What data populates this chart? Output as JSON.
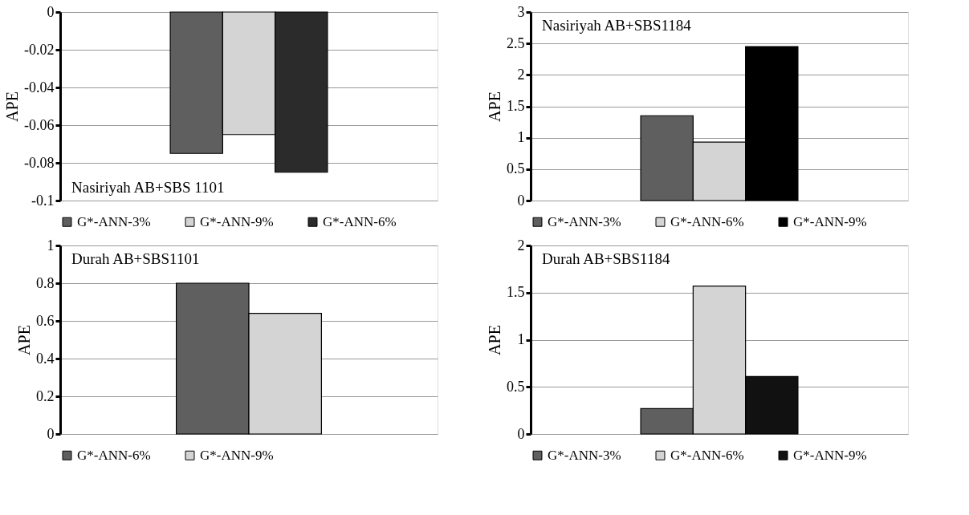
{
  "chart_data": [
    {
      "type": "bar",
      "ylabel": "APE",
      "annotations": [
        "Nasiriyah AB+SBS 1101"
      ],
      "categories": [
        null
      ],
      "ylim": [
        -0.1,
        0
      ],
      "yticks": [
        -0.1,
        -0.08,
        -0.06,
        -0.04,
        -0.02,
        0
      ],
      "grid": "y",
      "legend": "bottom",
      "tick_labels": "y",
      "series": [
        {
          "name": "G*-ANN-3%",
          "color": "#5f5f5f",
          "values": [
            -0.075
          ]
        },
        {
          "name": "G*-ANN-9%",
          "color": "#d4d4d4",
          "values": [
            -0.065
          ]
        },
        {
          "name": "G*-ANN-6%",
          "color": "#2b2b2b",
          "values": [
            -0.085
          ]
        }
      ]
    },
    {
      "type": "bar",
      "ylabel": "APE",
      "annotations": [
        "Nasiriyah AB+SBS1184"
      ],
      "categories": [
        null
      ],
      "ylim": [
        0,
        3
      ],
      "yticks": [
        0,
        0.5,
        1,
        1.5,
        2,
        2.5,
        3
      ],
      "grid": "y",
      "legend": "bottom",
      "tick_labels": "y",
      "series": [
        {
          "name": "G*-ANN-3%",
          "color": "#5f5f5f",
          "values": [
            1.35
          ]
        },
        {
          "name": "G*-ANN-6%",
          "color": "#d4d4d4",
          "values": [
            0.93
          ]
        },
        {
          "name": "G*-ANN-9%",
          "color": "#000000",
          "values": [
            2.45
          ]
        }
      ]
    },
    {
      "type": "bar",
      "ylabel": "APE",
      "annotations": [
        "Durah AB+SBS1101"
      ],
      "categories": [
        null
      ],
      "ylim": [
        0,
        1
      ],
      "yticks": [
        0,
        0.2,
        0.4,
        0.6,
        0.8,
        1
      ],
      "grid": "y",
      "legend": "bottom",
      "tick_labels": "y",
      "series": [
        {
          "name": "G*-ANN-6%",
          "color": "#5f5f5f",
          "values": [
            0.8
          ]
        },
        {
          "name": "G*-ANN-9%",
          "color": "#d4d4d4",
          "values": [
            0.64
          ]
        }
      ]
    },
    {
      "type": "bar",
      "ylabel": "APE",
      "annotations": [
        "Durah AB+SBS1184"
      ],
      "categories": [
        null
      ],
      "ylim": [
        0,
        2
      ],
      "yticks": [
        0,
        0.5,
        1,
        1.5,
        2
      ],
      "grid": "y",
      "legend": "bottom",
      "tick_labels": "y",
      "series": [
        {
          "name": "G*-ANN-3%",
          "color": "#5f5f5f",
          "values": [
            0.27
          ]
        },
        {
          "name": "G*-ANN-6%",
          "color": "#d4d4d4",
          "values": [
            1.57
          ]
        },
        {
          "name": "G*-ANN-9%",
          "color": "#111111",
          "values": [
            0.61
          ]
        }
      ]
    }
  ]
}
